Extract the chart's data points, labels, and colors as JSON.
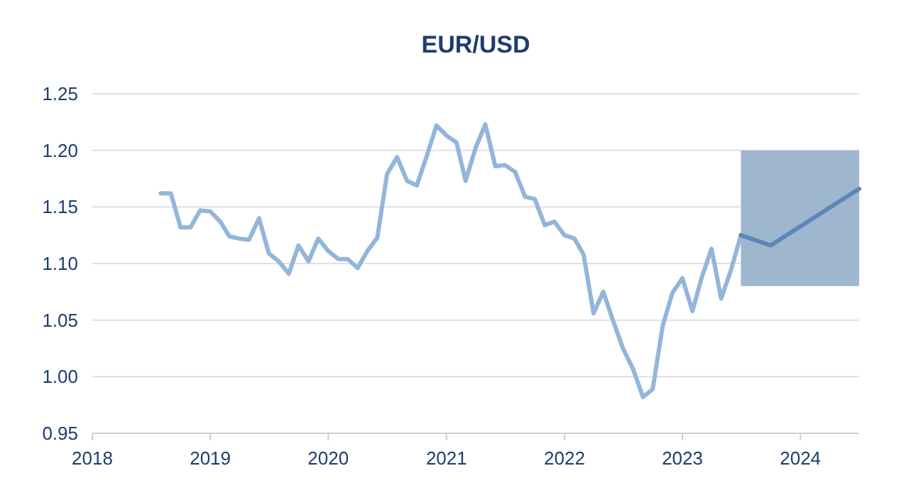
{
  "chart_data": {
    "type": "line",
    "title": "EUR/USD",
    "x": [
      "2018-08",
      "2018-09",
      "2018-10",
      "2018-11",
      "2018-12",
      "2019-01",
      "2019-02",
      "2019-03",
      "2019-04",
      "2019-05",
      "2019-06",
      "2019-07",
      "2019-08",
      "2019-09",
      "2019-10",
      "2019-11",
      "2019-12",
      "2020-01",
      "2020-02",
      "2020-03",
      "2020-04",
      "2020-05",
      "2020-06",
      "2020-07",
      "2020-08",
      "2020-09",
      "2020-10",
      "2020-11",
      "2020-12",
      "2021-01",
      "2021-02",
      "2021-03",
      "2021-04",
      "2021-05",
      "2021-06",
      "2021-07",
      "2021-08",
      "2021-09",
      "2021-10",
      "2021-11",
      "2021-12",
      "2022-01",
      "2022-02",
      "2022-03",
      "2022-04",
      "2022-05",
      "2022-06",
      "2022-07",
      "2022-08",
      "2022-09",
      "2022-10",
      "2022-11",
      "2022-12",
      "2023-01",
      "2023-02",
      "2023-03",
      "2023-04",
      "2023-05",
      "2023-06",
      "2023-07"
    ],
    "series": [
      {
        "color": "#93b5da",
        "values": [
          1.162,
          1.162,
          1.132,
          1.132,
          1.147,
          1.146,
          1.137,
          1.124,
          1.122,
          1.121,
          1.14,
          1.109,
          1.102,
          1.091,
          1.116,
          1.102,
          1.122,
          1.111,
          1.104,
          1.104,
          1.096,
          1.111,
          1.123,
          1.179,
          1.194,
          1.173,
          1.169,
          1.195,
          1.222,
          1.213,
          1.207,
          1.173,
          1.202,
          1.223,
          1.186,
          1.187,
          1.181,
          1.159,
          1.157,
          1.134,
          1.137,
          1.125,
          1.122,
          1.108,
          1.056,
          1.075,
          1.049,
          1.025,
          1.007,
          0.982,
          0.989,
          1.045,
          1.074,
          1.087,
          1.058,
          1.087,
          1.113,
          1.069,
          1.095,
          1.125
        ]
      },
      {
        "color": "#5b87b8",
        "x": [
          "2023-07",
          "2023-10",
          "2024-07"
        ],
        "values": [
          1.125,
          1.116,
          1.166
        ],
        "lower": [
          1.08,
          1.08,
          1.08
        ],
        "upper": [
          1.2,
          1.2,
          1.2
        ]
      }
    ],
    "xlim": [
      "2018-01",
      "2024-07"
    ],
    "xticks": [
      {
        "value": "2018",
        "label": "2018"
      },
      {
        "value": "2019",
        "label": "2019"
      },
      {
        "value": "2020",
        "label": "2020"
      },
      {
        "value": "2021",
        "label": "2021"
      },
      {
        "value": "2022",
        "label": "2022"
      },
      {
        "value": "2023",
        "label": "2023"
      },
      {
        "value": "2024",
        "label": "2024"
      }
    ],
    "ylim": [
      0.95,
      1.25
    ],
    "yticks": [
      {
        "value": 0.95,
        "label": "0.95"
      },
      {
        "value": 1.0,
        "label": "1.00"
      },
      {
        "value": 1.05,
        "label": "1.05"
      },
      {
        "value": 1.1,
        "label": "1.10"
      },
      {
        "value": 1.15,
        "label": "1.15"
      },
      {
        "value": 1.2,
        "label": "1.20"
      },
      {
        "value": 1.25,
        "label": "1.25"
      }
    ],
    "grid": "y",
    "marker": "none",
    "line_style": "solid"
  }
}
